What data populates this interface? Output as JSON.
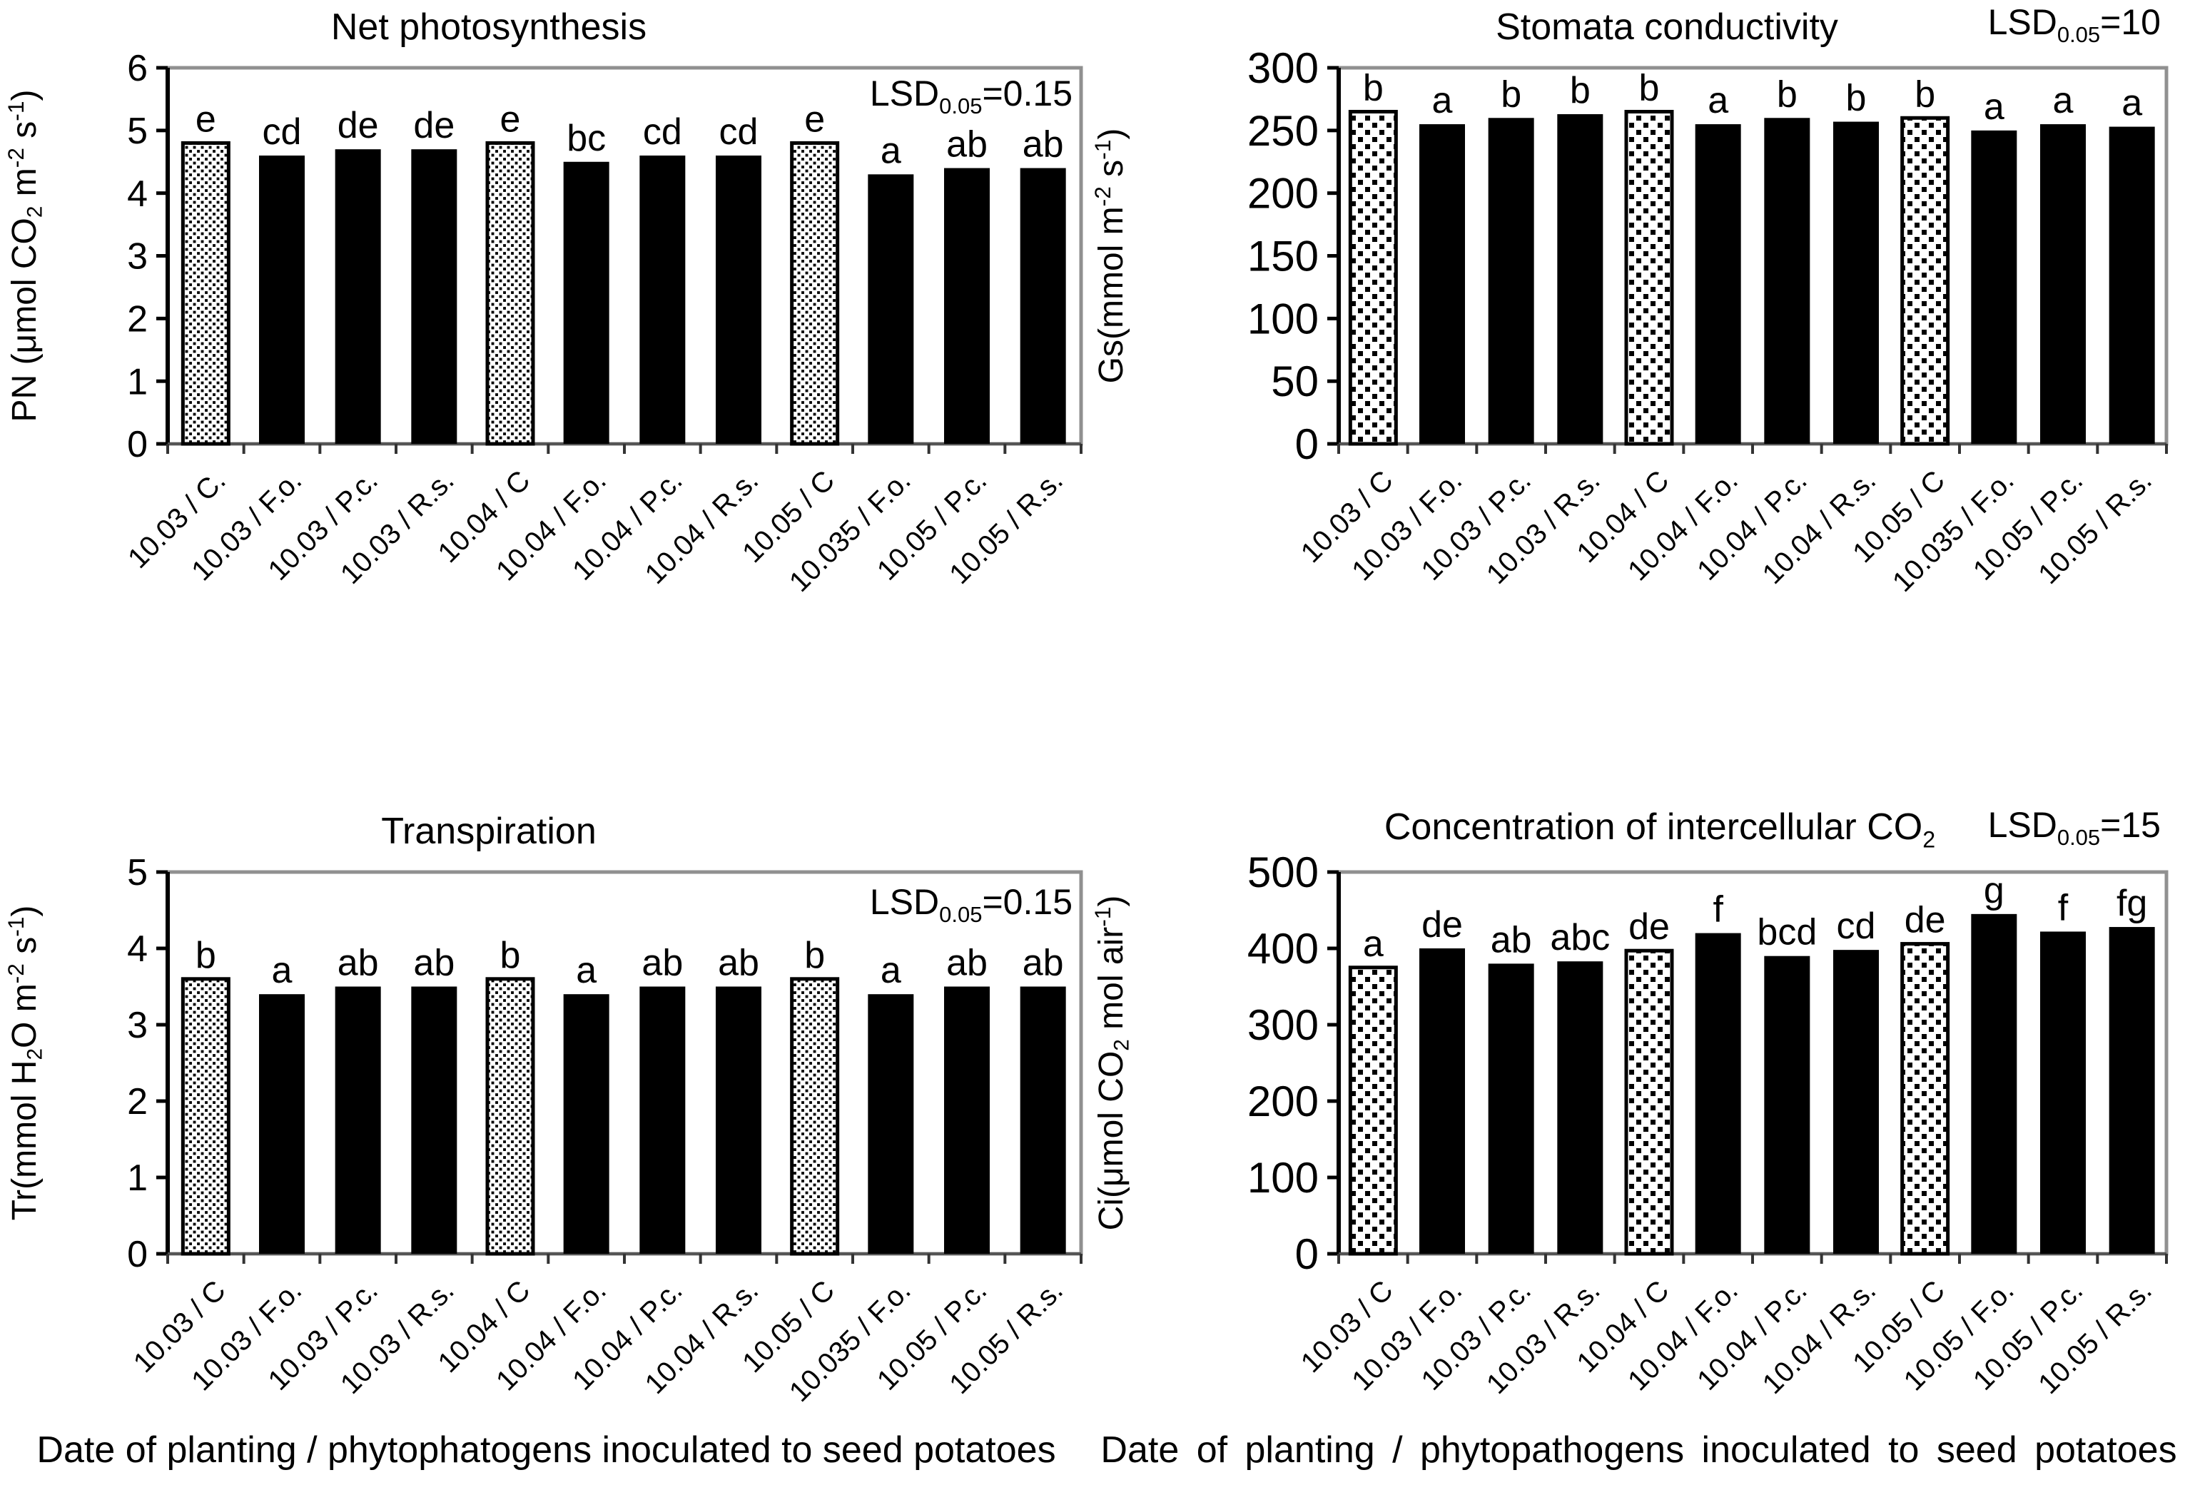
{
  "page": {
    "background": "#ffffff",
    "text_color": "#000000",
    "bar_color": "#000000",
    "frame_color": "#909090",
    "captions": {
      "left": "Date of planting / phytophatogens inoculated to seed potatoes",
      "right": "Date of planting / phytopathogens inoculated to seed potatoes"
    }
  },
  "chart_data": [
    {
      "id": "net-photosynthesis",
      "type": "bar",
      "title": "Net photosynthesis",
      "lsd_label": "LSD~0.05~=0.15",
      "lsd_placement": "inside-plot-top-right",
      "ylabel": "PN (μmol CO~2~ m^-2^ s^-1^)",
      "xlabel": "",
      "ylim": [
        0,
        6
      ],
      "yticks": [
        0,
        1,
        2,
        3,
        4,
        5,
        6
      ],
      "grid": false,
      "legend": "none",
      "categories": [
        "10.03 / C.",
        "10.03 / F.o.",
        "10.03 / P.c.",
        "10.03 / R.s.",
        "10.04 / C",
        "10.04 / F.o.",
        "10.04 / P.c.",
        "10.04 / R.s.",
        "10.05 / C",
        "10.035 / F.o.",
        "10.05 / P.c.",
        "10.05 / R.s."
      ],
      "values": [
        4.8,
        4.6,
        4.7,
        4.7,
        4.8,
        4.5,
        4.6,
        4.6,
        4.8,
        4.3,
        4.4,
        4.4
      ],
      "letters": [
        "e",
        "cd",
        "de",
        "de",
        "e",
        "bc",
        "cd",
        "cd",
        "e",
        "a",
        "ab",
        "ab"
      ],
      "control_bar_indices": [
        0,
        4,
        8
      ],
      "bar_color": "#000000",
      "control_fill": "dotted-white"
    },
    {
      "id": "stomata-conductivity",
      "type": "bar",
      "title": "Stomata conductivity",
      "lsd_label": "LSD~0.05~=10",
      "lsd_placement": "outside-top-right",
      "ylabel": "Gs(mmol m^-2^ s^-1^)",
      "xlabel": "",
      "ylim": [
        0,
        300
      ],
      "yticks": [
        0,
        50,
        100,
        150,
        200,
        250,
        300
      ],
      "grid": false,
      "legend": "none",
      "categories": [
        "10.03 / C",
        "10.03 / F.o.",
        "10.03 / P.c.",
        "10.03 / R.s.",
        "10.04 / C",
        "10.04 / F.o.",
        "10.04 / P.c.",
        "10.04 / R.s.",
        "10.05 / C",
        "10.035 / F.o.",
        "10.05 / P.c.",
        "10.05 / R.s."
      ],
      "values": [
        265,
        255,
        260,
        263,
        265,
        255,
        260,
        257,
        260,
        250,
        255,
        253
      ],
      "letters": [
        "b",
        "a",
        "b",
        "b",
        "b",
        "a",
        "b",
        "b",
        "b",
        "a",
        "a",
        "a"
      ],
      "control_bar_indices": [
        0,
        4,
        8
      ],
      "bar_color": "#000000",
      "control_fill": "dotted-white"
    },
    {
      "id": "transpiration",
      "type": "bar",
      "title": "Transpiration",
      "lsd_label": "LSD~0.05~=0.15",
      "lsd_placement": "inside-plot-top-right",
      "ylabel": "Tr(mmol H~2~O m^-2^ s^-1^)",
      "xlabel": "",
      "ylim": [
        0,
        5
      ],
      "yticks": [
        0,
        1,
        2,
        3,
        4,
        5
      ],
      "grid": false,
      "legend": "none",
      "categories": [
        "10.03 / C",
        "10.03 / F.o.",
        "10.03 / P.c.",
        "10.03 / R.s.",
        "10.04 / C",
        "10.04 / F.o.",
        "10.04 / P.c.",
        "10.04 / R.s.",
        "10.05 / C",
        "10.035 / F.o.",
        "10.05 / P.c.",
        "10.05 / R.s."
      ],
      "values": [
        3.6,
        3.4,
        3.5,
        3.5,
        3.6,
        3.4,
        3.5,
        3.5,
        3.6,
        3.4,
        3.5,
        3.5
      ],
      "letters": [
        "b",
        "a",
        "ab",
        "ab",
        "b",
        "a",
        "ab",
        "ab",
        "b",
        "a",
        "ab",
        "ab"
      ],
      "control_bar_indices": [
        0,
        4,
        8
      ],
      "bar_color": "#000000",
      "control_fill": "dotted-white"
    },
    {
      "id": "intercellular-co2",
      "type": "bar",
      "title": "Concentration of intercellular CO~2~",
      "lsd_label": "LSD~0.05~=15",
      "lsd_placement": "outside-top-right",
      "ylabel": "Ci(μmol CO~2~ mol air^-1^)",
      "xlabel": "",
      "ylim": [
        0,
        500
      ],
      "yticks": [
        0,
        100,
        200,
        300,
        400,
        500
      ],
      "grid": false,
      "legend": "none",
      "categories": [
        "10.03 / C",
        "10.03 / F.o.",
        "10.03 / P.c.",
        "10.03 / R.s.",
        "10.04 / C",
        "10.04 / F.o.",
        "10.04 / P.c.",
        "10.04 / R.s.",
        "10.05 / C",
        "10.05 / F.o.",
        "10.05 / P.c.",
        "10.05 / R.s."
      ],
      "values": [
        375,
        400,
        380,
        383,
        397,
        420,
        390,
        398,
        406,
        445,
        422,
        428
      ],
      "letters": [
        "a",
        "de",
        "ab",
        "abc",
        "de",
        "f",
        "bcd",
        "cd",
        "de",
        "g",
        "f",
        "fg"
      ],
      "control_bar_indices": [
        0,
        4,
        8
      ],
      "bar_color": "#000000",
      "control_fill": "dotted-white"
    }
  ]
}
